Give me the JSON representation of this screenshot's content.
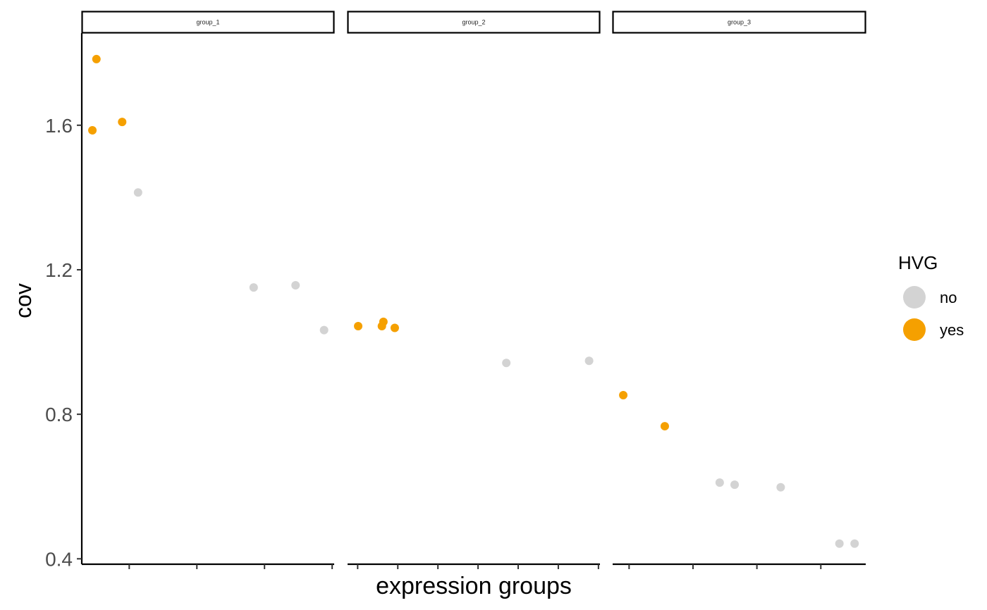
{
  "chart_data": {
    "type": "scatter",
    "facet_variable": "expression groups",
    "facets": [
      "group_1",
      "group_2",
      "group_3"
    ],
    "xlabel": "expression groups",
    "ylabel": "cov",
    "ylim": [
      0.385,
      1.855
    ],
    "y_ticks": [
      0.4,
      0.8,
      1.2,
      1.6
    ],
    "y_tick_labels": [
      "0.4",
      "0.8",
      "1.2",
      "1.6"
    ],
    "x_tick_counts": [
      4,
      7,
      4
    ],
    "grid": false,
    "legend": {
      "title": "HVG",
      "placement": "right",
      "entries": [
        {
          "label": "no",
          "color": "#d3d3d3"
        },
        {
          "label": "yes",
          "color": "#f5a000"
        }
      ]
    },
    "series": [
      {
        "name": "no",
        "color": "#d3d3d3",
        "points": [
          {
            "facet": 0,
            "x": 0.223,
            "y": 1.414
          },
          {
            "facet": 0,
            "x": 0.681,
            "y": 1.151
          },
          {
            "facet": 0,
            "x": 0.847,
            "y": 1.157
          },
          {
            "facet": 0,
            "x": 0.96,
            "y": 1.033
          },
          {
            "facet": 1,
            "x": 0.629,
            "y": 0.942
          },
          {
            "facet": 1,
            "x": 0.957,
            "y": 0.948
          },
          {
            "facet": 2,
            "x": 0.423,
            "y": 0.611
          },
          {
            "facet": 2,
            "x": 0.482,
            "y": 0.605
          },
          {
            "facet": 2,
            "x": 0.664,
            "y": 0.598
          },
          {
            "facet": 2,
            "x": 0.896,
            "y": 0.442
          },
          {
            "facet": 2,
            "x": 0.956,
            "y": 0.442
          }
        ]
      },
      {
        "name": "yes",
        "color": "#f5a000",
        "points": [
          {
            "facet": 0,
            "x": 0.058,
            "y": 1.783
          },
          {
            "facet": 0,
            "x": 0.042,
            "y": 1.586
          },
          {
            "facet": 0,
            "x": 0.16,
            "y": 1.609
          },
          {
            "facet": 1,
            "x": 0.042,
            "y": 1.044
          },
          {
            "facet": 1,
            "x": 0.136,
            "y": 1.044
          },
          {
            "facet": 1,
            "x": 0.142,
            "y": 1.056
          },
          {
            "facet": 1,
            "x": 0.187,
            "y": 1.039
          },
          {
            "facet": 2,
            "x": 0.042,
            "y": 0.853
          },
          {
            "facet": 2,
            "x": 0.206,
            "y": 0.767
          }
        ]
      }
    ]
  }
}
